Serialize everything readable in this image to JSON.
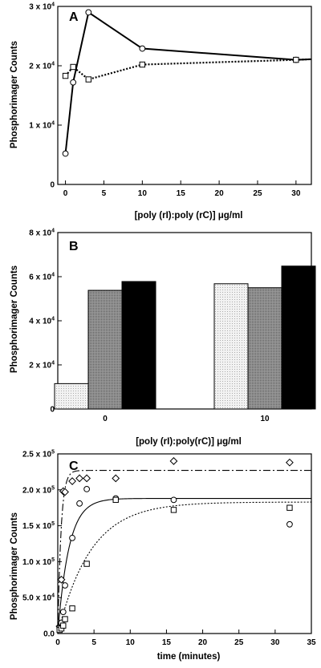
{
  "chart_data": [
    {
      "type": "line",
      "panel_label": "A",
      "xlabel": "[poly (rI):poly (rC)] μg/ml",
      "ylabel": "Phosphorimager Counts",
      "xlim": [
        -1,
        32
      ],
      "ylim": [
        0,
        30000
      ],
      "x_ticks": [
        0,
        5,
        10,
        15,
        20,
        25,
        30
      ],
      "y_ticks": [
        {
          "value": 0,
          "label": "0"
        },
        {
          "value": 10000,
          "label": "1 x 10",
          "exp": "4"
        },
        {
          "value": 20000,
          "label": "2 x 10",
          "exp": "4"
        },
        {
          "value": 30000,
          "label": "3 x 10",
          "exp": "4"
        }
      ],
      "series": [
        {
          "marker": "circle",
          "line": "solid",
          "x": [
            0,
            1,
            3,
            10,
            30,
            32
          ],
          "y": [
            5200,
            17200,
            29000,
            22900,
            21000,
            21100
          ]
        },
        {
          "marker": "square",
          "line": "dotted",
          "x": [
            0,
            1,
            3,
            10,
            30,
            32
          ],
          "y": [
            18300,
            19800,
            17700,
            20200,
            21000,
            21100
          ]
        }
      ]
    },
    {
      "type": "bar",
      "panel_label": "B",
      "xlabel": "[poly (rI):poly(rC)] μg/ml",
      "ylabel": "Phosphorimager Counts",
      "ylim": [
        0,
        80000
      ],
      "categories": [
        "0",
        "10"
      ],
      "y_ticks": [
        {
          "value": 0,
          "label": "0"
        },
        {
          "value": 20000,
          "label": "2 x 10",
          "exp": "4"
        },
        {
          "value": 40000,
          "label": "4 x 10",
          "exp": "4"
        },
        {
          "value": 60000,
          "label": "6 x 10",
          "exp": "4"
        },
        {
          "value": 80000,
          "label": "8 x 10",
          "exp": "4"
        }
      ],
      "series": [
        {
          "fill": "#e6e6e6",
          "values": [
            11500,
            56800
          ]
        },
        {
          "fill": "#8a8a8a",
          "values": [
            53800,
            55000
          ]
        },
        {
          "fill": "#000000",
          "values": [
            57800,
            64800
          ]
        }
      ]
    },
    {
      "type": "scatter",
      "panel_label": "C",
      "xlabel": "time (minutes)",
      "ylabel": "Phosphorimager Counts",
      "xlim": [
        0,
        35
      ],
      "ylim": [
        0,
        250000
      ],
      "x_ticks": [
        0,
        5,
        10,
        15,
        20,
        25,
        30,
        35
      ],
      "y_ticks": [
        {
          "value": 0,
          "label": "0.0"
        },
        {
          "value": 50000,
          "label": "5.0 x 10",
          "exp": "4"
        },
        {
          "value": 100000,
          "label": "1.0 x 10",
          "exp": "5"
        },
        {
          "value": 150000,
          "label": "1.5 x 10",
          "exp": "5"
        },
        {
          "value": 200000,
          "label": "2.0 x 10",
          "exp": "5"
        },
        {
          "value": 250000,
          "label": "2.5 x 10",
          "exp": "5"
        }
      ],
      "series": [
        {
          "marker": "diamond",
          "line": "dashdot",
          "x": [
            0.25,
            0.5,
            0.75,
            1,
            2,
            3,
            4,
            8,
            16,
            32
          ],
          "y": [
            10000,
            75000,
            198000,
            197000,
            212000,
            216000,
            216000,
            216000,
            240000,
            238000
          ],
          "fit": {
            "plateau": 227000,
            "rate": 2.2
          }
        },
        {
          "marker": "circle",
          "line": "solid",
          "x": [
            0.25,
            0.5,
            0.75,
            1,
            2,
            3,
            4,
            8,
            16,
            32
          ],
          "y": [
            8000,
            15000,
            30000,
            67000,
            133000,
            181000,
            201000,
            188000,
            186000,
            152000
          ],
          "fit": {
            "plateau": 188000,
            "rate": 0.65
          }
        },
        {
          "marker": "square",
          "line": "dotted",
          "x": [
            0.25,
            0.5,
            0.75,
            1,
            2,
            4,
            8,
            16,
            32
          ],
          "y": [
            5000,
            7000,
            11000,
            20000,
            35000,
            97000,
            186000,
            172000,
            175000
          ],
          "fit": {
            "plateau": 183000,
            "rate": 0.22
          }
        }
      ]
    }
  ]
}
